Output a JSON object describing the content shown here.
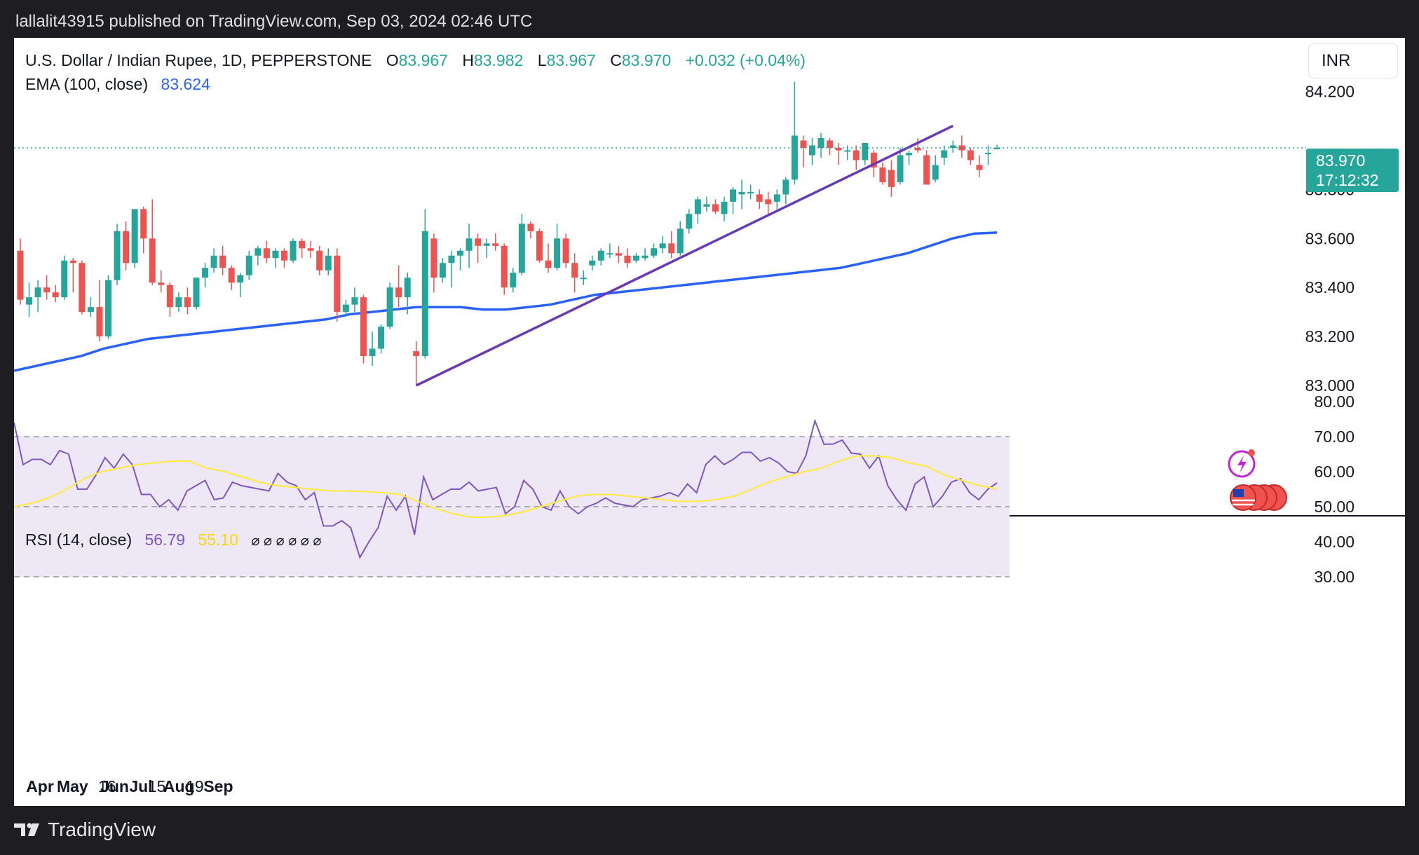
{
  "header": {
    "text": "lallalit43915 published on TradingView.com, Sep 03, 2024 02:46 UTC"
  },
  "footer": {
    "brand": "TradingView"
  },
  "currency_button": "INR",
  "legend": {
    "title": "U.S. Dollar / Indian Rupee, 1D, PEPPERSTONE",
    "o_label": "O",
    "o_value": "83.967",
    "h_label": "H",
    "h_value": "83.982",
    "l_label": "L",
    "l_value": "83.967",
    "c_label": "C",
    "c_value": "83.970",
    "change": "+0.032 (+0.04%)",
    "ema_label": "EMA (100, close)",
    "ema_value": "83.624",
    "rsi_label": "RSI (14, close)",
    "rsi_value": "56.79",
    "rsi_ma_value": "55.10",
    "rsi_empty": "⌀ ⌀ ⌀ ⌀ ⌀ ⌀"
  },
  "price_tag": {
    "price": "83.970",
    "countdown": "17:12:32"
  },
  "colors": {
    "up": "#26a69a",
    "down": "#ef5350",
    "ema": "#2962ff",
    "trendline": "#673ab7",
    "rsi": "#7e57c2",
    "rsi_ma": "#ffeb3b",
    "rsi_band": "#ede7f6"
  },
  "chart_data": [
    {
      "type": "candlestick",
      "title": "U.S. Dollar / Indian Rupee, 1D, PEPPERSTONE",
      "price_axis_ticks": [
        "84.200",
        "83.800",
        "83.600",
        "83.400",
        "83.200",
        "83.000"
      ],
      "time_axis_labels": [
        "Apr",
        "May",
        "16",
        "Jun",
        "Jul",
        "15",
        "Aug",
        "19",
        "Sep"
      ],
      "ylim": [
        82.87,
        84.27
      ],
      "candles": [
        [
          83.55,
          83.6,
          83.33,
          83.35
        ],
        [
          83.33,
          83.42,
          83.28,
          83.36
        ],
        [
          83.36,
          83.43,
          83.3,
          83.4
        ],
        [
          83.4,
          83.45,
          83.35,
          83.38
        ],
        [
          83.38,
          83.41,
          83.34,
          83.36
        ],
        [
          83.36,
          83.53,
          83.35,
          83.51
        ],
        [
          83.51,
          83.52,
          83.38,
          83.5
        ],
        [
          83.5,
          83.51,
          83.29,
          83.3
        ],
        [
          83.3,
          83.36,
          83.28,
          83.32
        ],
        [
          83.32,
          83.43,
          83.18,
          83.2
        ],
        [
          83.2,
          83.45,
          83.19,
          83.43
        ],
        [
          83.43,
          83.66,
          83.41,
          83.63
        ],
        [
          83.63,
          83.67,
          83.47,
          83.5
        ],
        [
          83.5,
          83.71,
          83.48,
          83.72
        ],
        [
          83.72,
          83.73,
          83.54,
          83.6
        ],
        [
          83.6,
          83.76,
          83.41,
          83.42
        ],
        [
          83.42,
          83.47,
          83.38,
          83.41
        ],
        [
          83.41,
          83.42,
          83.28,
          83.32
        ],
        [
          83.32,
          83.38,
          83.3,
          83.36
        ],
        [
          83.36,
          83.4,
          83.29,
          83.32
        ],
        [
          83.32,
          83.44,
          83.31,
          83.44
        ],
        [
          83.44,
          83.5,
          83.4,
          83.48
        ],
        [
          83.48,
          83.56,
          83.46,
          83.53
        ],
        [
          83.53,
          83.57,
          83.45,
          83.48
        ],
        [
          83.48,
          83.49,
          83.39,
          83.42
        ],
        [
          83.42,
          83.46,
          83.36,
          83.45
        ],
        [
          83.45,
          83.55,
          83.43,
          83.53
        ],
        [
          83.53,
          83.57,
          83.49,
          83.56
        ],
        [
          83.56,
          83.59,
          83.5,
          83.52
        ],
        [
          83.52,
          83.56,
          83.48,
          83.55
        ],
        [
          83.55,
          83.56,
          83.48,
          83.51
        ],
        [
          83.51,
          83.6,
          83.5,
          83.59
        ],
        [
          83.59,
          83.6,
          83.52,
          83.56
        ],
        [
          83.56,
          83.59,
          83.52,
          83.55
        ],
        [
          83.55,
          83.57,
          83.45,
          83.47
        ],
        [
          83.47,
          83.56,
          83.45,
          83.53
        ],
        [
          83.53,
          83.56,
          83.26,
          83.3
        ],
        [
          83.3,
          83.35,
          83.28,
          83.33
        ],
        [
          83.33,
          83.4,
          83.3,
          83.36
        ],
        [
          83.36,
          83.37,
          83.09,
          83.12
        ],
        [
          83.12,
          83.22,
          83.08,
          83.15
        ],
        [
          83.15,
          83.25,
          83.13,
          83.24
        ],
        [
          83.24,
          83.42,
          83.23,
          83.4
        ],
        [
          83.4,
          83.49,
          83.32,
          83.36
        ],
        [
          83.36,
          83.46,
          83.29,
          83.44
        ],
        [
          83.14,
          83.18,
          83.0,
          83.12
        ],
        [
          83.12,
          83.72,
          83.11,
          83.63
        ],
        [
          83.6,
          83.62,
          83.38,
          83.44
        ],
        [
          83.44,
          83.52,
          83.42,
          83.5
        ],
        [
          83.5,
          83.55,
          83.4,
          83.53
        ],
        [
          83.53,
          83.56,
          83.47,
          83.55
        ],
        [
          83.55,
          83.66,
          83.48,
          83.6
        ],
        [
          83.6,
          83.62,
          83.5,
          83.57
        ],
        [
          83.57,
          83.6,
          83.52,
          83.58
        ],
        [
          83.58,
          83.62,
          83.55,
          83.57
        ],
        [
          83.57,
          83.58,
          83.37,
          83.4
        ],
        [
          83.4,
          83.48,
          83.38,
          83.46
        ],
        [
          83.46,
          83.7,
          83.45,
          83.66
        ],
        [
          83.66,
          83.67,
          83.6,
          83.63
        ],
        [
          83.63,
          83.64,
          83.5,
          83.51
        ],
        [
          83.51,
          83.58,
          83.46,
          83.48
        ],
        [
          83.48,
          83.66,
          83.47,
          83.6
        ],
        [
          83.6,
          83.62,
          83.48,
          83.5
        ],
        [
          83.5,
          83.54,
          83.38,
          83.44
        ],
        [
          83.44,
          83.47,
          83.41,
          83.44
        ],
        [
          83.49,
          83.53,
          83.47,
          83.51
        ],
        [
          83.51,
          83.56,
          83.49,
          83.55
        ],
        [
          83.54,
          83.58,
          83.52,
          83.54
        ],
        [
          83.54,
          83.57,
          83.5,
          83.53
        ],
        [
          83.53,
          83.56,
          83.48,
          83.5
        ],
        [
          83.51,
          83.54,
          83.5,
          83.53
        ],
        [
          83.52,
          83.56,
          83.51,
          83.53
        ],
        [
          83.53,
          83.58,
          83.52,
          83.56
        ],
        [
          83.56,
          83.61,
          83.54,
          83.58
        ],
        [
          83.58,
          83.63,
          83.52,
          83.54
        ],
        [
          83.54,
          83.67,
          83.53,
          83.64
        ],
        [
          83.64,
          83.72,
          83.62,
          83.7
        ],
        [
          83.7,
          83.77,
          83.66,
          83.76
        ],
        [
          83.73,
          83.77,
          83.71,
          83.74
        ],
        [
          83.74,
          83.76,
          83.7,
          83.71
        ],
        [
          83.7,
          83.77,
          83.67,
          83.75
        ],
        [
          83.75,
          83.81,
          83.7,
          83.8
        ],
        [
          83.78,
          83.84,
          83.72,
          83.79
        ],
        [
          83.79,
          83.82,
          83.76,
          83.79
        ],
        [
          83.78,
          83.8,
          83.72,
          83.75
        ],
        [
          83.76,
          83.79,
          83.7,
          83.74
        ],
        [
          83.75,
          83.8,
          83.72,
          83.78
        ],
        [
          83.78,
          83.85,
          83.74,
          83.84
        ],
        [
          83.84,
          84.24,
          83.82,
          84.02
        ],
        [
          84.0,
          84.02,
          83.89,
          83.97
        ],
        [
          83.94,
          84.01,
          83.9,
          83.98
        ],
        [
          83.97,
          84.03,
          83.93,
          84.01
        ],
        [
          84.0,
          84.01,
          83.94,
          83.97
        ],
        [
          83.97,
          83.99,
          83.9,
          83.96
        ],
        [
          83.96,
          83.98,
          83.92,
          83.96
        ],
        [
          83.96,
          83.98,
          83.88,
          83.92
        ],
        [
          83.92,
          83.99,
          83.9,
          83.99
        ],
        [
          83.95,
          83.96,
          83.85,
          83.89
        ],
        [
          83.89,
          83.91,
          83.82,
          83.83
        ],
        [
          83.88,
          83.92,
          83.77,
          83.81
        ],
        [
          83.83,
          83.97,
          83.82,
          83.94
        ],
        [
          83.94,
          83.96,
          83.9,
          83.95
        ],
        [
          83.97,
          84.01,
          83.95,
          83.96
        ],
        [
          83.94,
          83.96,
          83.82,
          83.82
        ],
        [
          83.84,
          83.94,
          83.83,
          83.9
        ],
        [
          83.93,
          83.98,
          83.9,
          83.96
        ],
        [
          83.97,
          84.0,
          83.95,
          83.98
        ],
        [
          83.98,
          84.02,
          83.93,
          83.96
        ],
        [
          83.96,
          83.97,
          83.9,
          83.92
        ],
        [
          83.9,
          83.94,
          83.85,
          83.88
        ],
        [
          83.95,
          83.98,
          83.9,
          83.95
        ],
        [
          83.967,
          83.982,
          83.967,
          83.97
        ]
      ],
      "ema_100": [
        83.06,
        83.08,
        83.1,
        83.12,
        83.15,
        83.17,
        83.19,
        83.2,
        83.21,
        83.22,
        83.23,
        83.24,
        83.25,
        83.26,
        83.27,
        83.29,
        83.3,
        83.31,
        83.32,
        83.32,
        83.32,
        83.31,
        83.31,
        83.32,
        83.33,
        83.35,
        83.37,
        83.38,
        83.39,
        83.4,
        83.41,
        83.42,
        83.43,
        83.44,
        83.45,
        83.46,
        83.47,
        83.48,
        83.5,
        83.52,
        83.54,
        83.57,
        83.6,
        83.62,
        83.624
      ],
      "trendline": {
        "from": [
          "Jun",
          83.0
        ],
        "to": [
          "Sep",
          84.06
        ]
      }
    },
    {
      "type": "line",
      "title": "RSI (14, close)",
      "ylim": [
        25,
        80
      ],
      "y_ticks": [
        "80.00",
        "70.00",
        "60.00",
        "50.00",
        "40.00",
        "30.00"
      ],
      "bands": [
        30,
        50,
        70
      ],
      "series": [
        {
          "name": "RSI",
          "values": [
            74,
            62,
            63.5,
            63.5,
            62,
            66,
            65,
            55,
            55,
            59,
            64,
            61,
            65,
            62,
            53.5,
            53.5,
            50,
            52,
            49,
            54.5,
            56,
            57.5,
            52,
            52.5,
            57,
            56,
            55.5,
            55,
            54.5,
            59.5,
            57,
            56,
            52,
            54,
            44.5,
            44.5,
            46,
            44,
            35.5,
            40,
            44,
            53,
            49,
            53,
            42,
            58.5,
            52,
            53.5,
            55,
            55,
            57,
            54.5,
            55,
            55.5,
            48,
            50,
            57.5,
            55,
            50,
            49,
            54.5,
            50,
            48,
            50,
            51,
            52.5,
            51,
            50.5,
            50,
            52,
            52.5,
            53,
            54,
            53,
            56.5,
            54,
            62,
            64.5,
            62,
            63.5,
            65.5,
            65.5,
            63,
            64,
            62.5,
            60,
            59.5,
            64.5,
            74.5,
            67.8,
            67.9,
            69,
            65.3,
            65,
            61,
            64.5,
            56,
            52,
            49,
            56.5,
            58.5,
            50,
            53,
            57,
            58,
            54,
            52,
            55,
            56.79
          ]
        },
        {
          "name": "RSI MA",
          "values": [
            50,
            51,
            52.5,
            55,
            58,
            60,
            61,
            62,
            62.5,
            63,
            63,
            61,
            60,
            58.5,
            57,
            56,
            55.5,
            55,
            54.5,
            54.5,
            54.3,
            54,
            53.5,
            51.5,
            49.5,
            48,
            47,
            47,
            47.5,
            48.5,
            50,
            51.5,
            53,
            53.5,
            53.5,
            53,
            52.5,
            52,
            51.5,
            51.5,
            52,
            53,
            55,
            57,
            58.5,
            60,
            61,
            63,
            64.5,
            64.5,
            64,
            62.5,
            61.5,
            59,
            57.5,
            56,
            55.1
          ]
        }
      ]
    }
  ]
}
